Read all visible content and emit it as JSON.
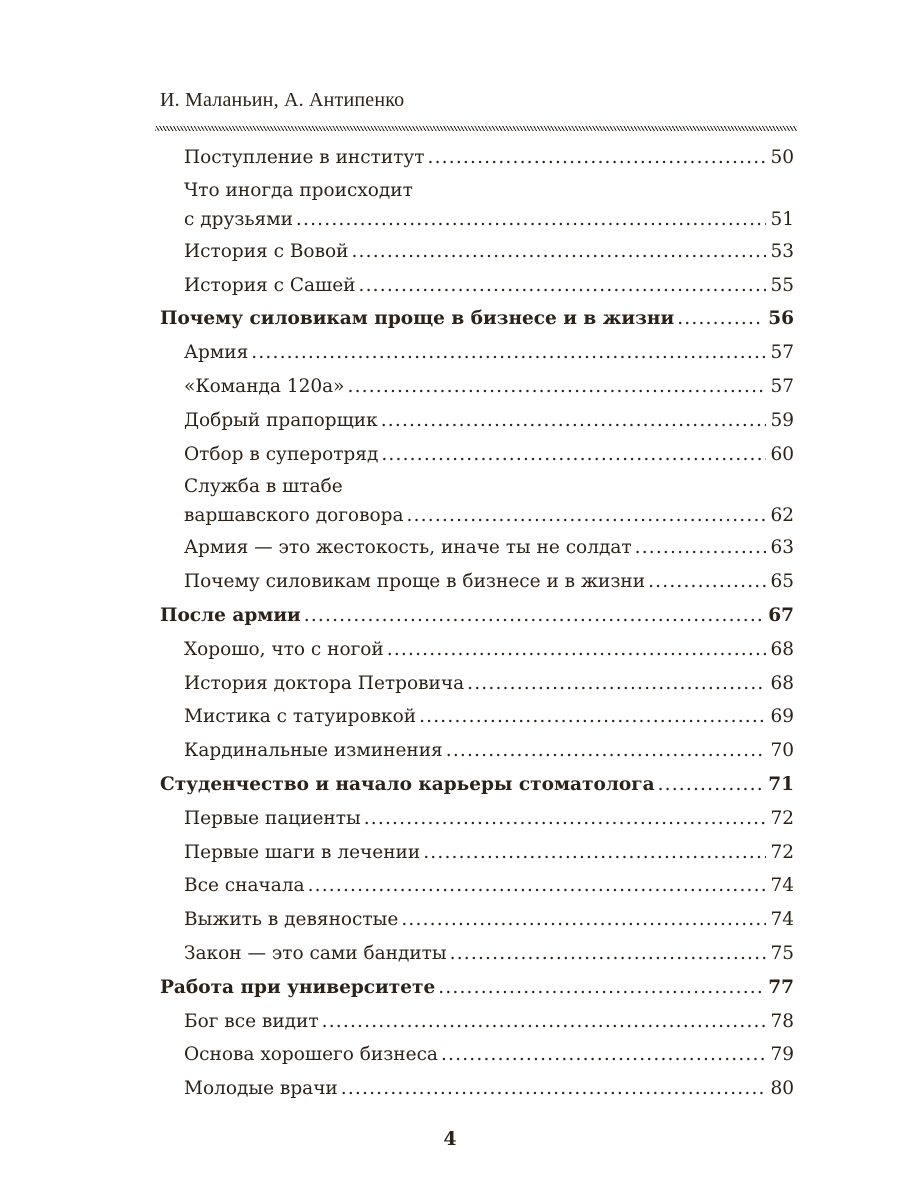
{
  "running_header": "И. Маланьин, А. Антипенко",
  "page_number": "4",
  "entries": [
    {
      "level": 2,
      "title": "Поступление в институт",
      "page": "50"
    },
    {
      "level": 2,
      "pre": "Что иногда происходит",
      "title": "с друзьями",
      "page": "51"
    },
    {
      "level": 2,
      "title": "История с Вовой",
      "page": "53"
    },
    {
      "level": 2,
      "title": "История с Сашей",
      "page": "55"
    },
    {
      "level": 1,
      "title": "Почему силовикам проще в бизнесе и в жизни",
      "page": "56"
    },
    {
      "level": 2,
      "title": "Армия",
      "page": "57"
    },
    {
      "level": 2,
      "title": "«Команда 120а»",
      "page": "57"
    },
    {
      "level": 2,
      "title": "Добрый прапорщик",
      "page": "59"
    },
    {
      "level": 2,
      "title": "Отбор в суперотряд",
      "page": "60"
    },
    {
      "level": 2,
      "pre": "Служба в штабе",
      "title": "варшавского договора",
      "page": "62"
    },
    {
      "level": 2,
      "title": "Армия — это жестокость, иначе ты не солдат",
      "page": "63"
    },
    {
      "level": 2,
      "title": "Почему силовикам проще в бизнесе и в жизни",
      "page": "65"
    },
    {
      "level": 1,
      "title": "После армии",
      "page": "67"
    },
    {
      "level": 2,
      "title": "Хорошо, что с ногой",
      "page": "68"
    },
    {
      "level": 2,
      "title": "История доктора Петровича",
      "page": "68"
    },
    {
      "level": 2,
      "title": "Мистика с татуировкой",
      "page": "69"
    },
    {
      "level": 2,
      "title": "Кардинальные изминения",
      "page": "70"
    },
    {
      "level": 1,
      "title": "Студенчество и начало карьеры стоматолога",
      "page": "71"
    },
    {
      "level": 2,
      "title": "Первые пациенты",
      "page": "72"
    },
    {
      "level": 2,
      "title": "Первые шаги в лечении",
      "page": "72"
    },
    {
      "level": 2,
      "title": "Все сначала",
      "page": "74"
    },
    {
      "level": 2,
      "title": "Выжить в девяностые",
      "page": "74"
    },
    {
      "level": 2,
      "title": "Закон — это сами бандиты",
      "page": "75"
    },
    {
      "level": 1,
      "title": "Работа при университете",
      "page": "77"
    },
    {
      "level": 2,
      "title": "Бог все видит",
      "page": "78"
    },
    {
      "level": 2,
      "title": "Основа хорошего бизнеса",
      "page": "79"
    },
    {
      "level": 2,
      "title": "Молодые врачи",
      "page": "80"
    }
  ]
}
